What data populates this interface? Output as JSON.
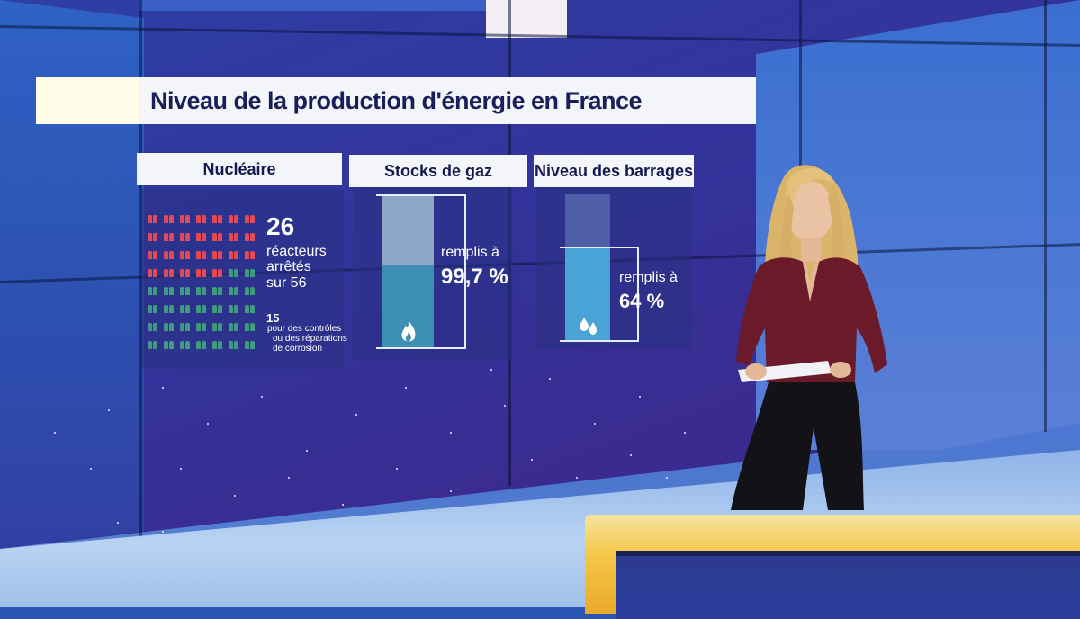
{
  "title": "Niveau de la production d'énergie en France",
  "panels": {
    "nuclear": {
      "header": "Nucléaire",
      "big_number": "26",
      "line1": "réacteurs",
      "line2": "arrêtés",
      "line3": "sur 56",
      "sub_number": "15",
      "sub_line1": "pour des contrôles",
      "sub_line2": "ou des réparations",
      "sub_line3": "de corrosion",
      "reactors_total": 56,
      "reactors_stopped": 26,
      "colors": {
        "stopped": "#e34a55",
        "running": "#3f9b7e"
      }
    },
    "gas": {
      "header": "Stocks de gaz",
      "label_line1": "remplis à",
      "label_value": "99,7 %",
      "fill_percent": 99.7,
      "icon": "flame-icon",
      "fill_color": "#3e8fb4"
    },
    "dams": {
      "header": "Niveau des barrages",
      "label_line1": "remplis à",
      "label_value": "64 %",
      "fill_percent": 64,
      "icon": "water-drops-icon",
      "fill_color": "#4aa3d6"
    }
  }
}
